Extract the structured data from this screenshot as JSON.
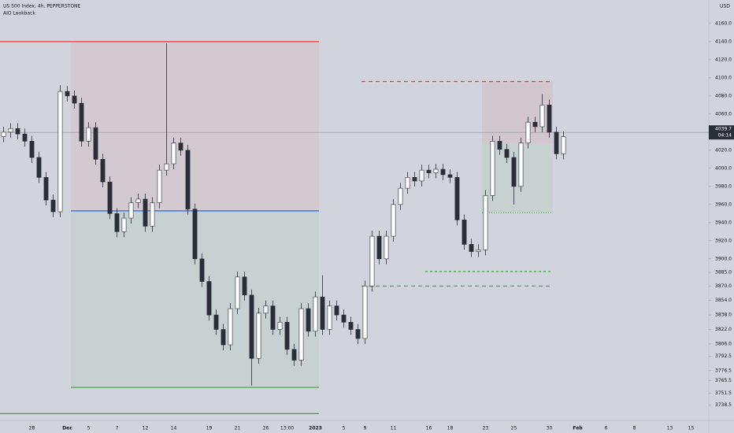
{
  "chart_data": {
    "type": "candlestick",
    "title": "US 500 Index, 4h, PEPPERSTONE",
    "indicator": "AIO Lookback",
    "currency": "USD",
    "categories": [
      null,
      null,
      null,
      null,
      "28",
      null,
      null,
      null,
      null,
      "Dec",
      null,
      null,
      "5",
      null,
      null,
      null,
      "7",
      null,
      null,
      null,
      "12",
      null,
      null,
      null,
      "14",
      null,
      null,
      null,
      null,
      "19",
      null,
      null,
      null,
      "21",
      null,
      null,
      null,
      "26",
      null,
      null,
      "13:00",
      null,
      null,
      null,
      "2023",
      null,
      null,
      null,
      "5",
      null,
      null,
      "9",
      null,
      null,
      null,
      "11",
      null,
      null,
      null,
      null,
      "16",
      null,
      null,
      "18",
      null,
      null,
      null,
      null,
      "23",
      null,
      null,
      null,
      "25",
      null,
      null,
      null,
      null,
      "30",
      null,
      null,
      null,
      "Feb",
      null,
      null,
      null,
      "6",
      null,
      null,
      null,
      "8",
      null,
      null,
      null,
      null,
      "13",
      null,
      null,
      "15",
      null,
      null
    ],
    "open": [
      4035,
      4040,
      4044,
      4038,
      4030,
      4012,
      3990,
      3965,
      3952,
      4085,
      4080,
      4072,
      4030,
      4045,
      4010,
      3985,
      3950,
      3930,
      3945,
      3962,
      3966,
      3936,
      3962,
      3998,
      4005,
      4028,
      4020,
      3955,
      3900,
      3875,
      3838,
      3822,
      3805,
      3845,
      3880,
      3860,
      3790,
      3840,
      3848,
      3822,
      3830,
      3800,
      3788,
      3845,
      3820,
      3858,
      3822,
      3848,
      3838,
      3830,
      3822,
      3812,
      3870,
      3925,
      3900,
      3925,
      3960,
      3978,
      3990,
      3986,
      3998,
      3995,
      3999,
      3993,
      3990,
      3943,
      3916,
      3908,
      3910,
      3970,
      4030,
      4021,
      4012,
      3980,
      4028,
      4051,
      4046,
      4070,
      4040,
      4016,
      null,
      null,
      null,
      null,
      null,
      null,
      null,
      null,
      null,
      null,
      null,
      null,
      null,
      null,
      null,
      null,
      null,
      null,
      null,
      null
    ],
    "high": [
      4046,
      4050,
      4050,
      4044,
      4036,
      4018,
      3996,
      3971,
      4092,
      4091,
      4086,
      4078,
      4051,
      4051,
      4016,
      3991,
      3956,
      3951,
      3968,
      3972,
      3972,
      3968,
      4004,
      4138,
      4034,
      4034,
      4026,
      3961,
      3906,
      3881,
      3844,
      3828,
      3851,
      3886,
      3886,
      3866,
      3846,
      3854,
      3854,
      3836,
      3836,
      3806,
      3851,
      3851,
      3864,
      3882,
      3854,
      3854,
      3844,
      3836,
      3828,
      3876,
      3931,
      3931,
      3931,
      3966,
      3984,
      3996,
      3996,
      4004,
      4004,
      4005,
      4005,
      3999,
      3996,
      3949,
      3922,
      3916,
      3976,
      4036,
      4036,
      4027,
      4018,
      4034,
      4057,
      4057,
      4082,
      4076,
      4046,
      4041,
      null,
      null,
      null,
      null,
      null,
      null,
      null,
      null,
      null,
      null,
      null,
      null,
      null,
      null,
      null,
      null,
      null,
      null,
      null,
      null
    ],
    "low": [
      4029,
      4034,
      4032,
      4024,
      4006,
      3984,
      3959,
      3946,
      3946,
      4074,
      4066,
      4024,
      4024,
      4004,
      3979,
      3944,
      3924,
      3924,
      3939,
      3956,
      3930,
      3930,
      3956,
      3992,
      3999,
      4014,
      3949,
      3894,
      3869,
      3832,
      3816,
      3799,
      3799,
      3839,
      3854,
      3760,
      3784,
      3834,
      3816,
      3816,
      3794,
      3782,
      3782,
      3814,
      3814,
      3816,
      3816,
      3832,
      3824,
      3816,
      3806,
      3806,
      3864,
      3894,
      3894,
      3919,
      3954,
      3972,
      3980,
      3980,
      3989,
      3989,
      3987,
      3984,
      3937,
      3910,
      3902,
      3902,
      3904,
      3964,
      4015,
      4006,
      3960,
      3974,
      4022,
      4040,
      4040,
      4034,
      4010,
      4010,
      null,
      null,
      null,
      null,
      null,
      null,
      null,
      null,
      null,
      null,
      null,
      null,
      null,
      null,
      null,
      null,
      null,
      null,
      null,
      null
    ],
    "close": [
      4040,
      4044,
      4038,
      4030,
      4012,
      3990,
      3965,
      3952,
      4085,
      4080,
      4072,
      4030,
      4045,
      4010,
      3985,
      3950,
      3930,
      3945,
      3962,
      3966,
      3936,
      3962,
      3998,
      4005,
      4028,
      4020,
      3955,
      3900,
      3875,
      3838,
      3822,
      3805,
      3845,
      3880,
      3860,
      3790,
      3840,
      3848,
      3822,
      3830,
      3800,
      3788,
      3845,
      3820,
      3858,
      3822,
      3848,
      3838,
      3830,
      3822,
      3812,
      3870,
      3925,
      3900,
      3925,
      3960,
      3978,
      3990,
      3986,
      3998,
      3995,
      3999,
      3993,
      3990,
      3943,
      3916,
      3908,
      3910,
      3970,
      4030,
      4021,
      4012,
      3980,
      4028,
      4051,
      4046,
      4070,
      4040,
      4016,
      4035,
      null,
      null,
      null,
      null,
      null,
      null,
      null,
      null,
      null,
      null,
      null,
      null,
      null,
      null,
      null,
      null,
      null,
      null,
      null,
      null
    ],
    "up_color": "#ffffff",
    "down_color": "#2a2e39",
    "ylim": [
      3725,
      4186
    ],
    "yticks": [
      {
        "value": 4160,
        "label": "4160.0"
      },
      {
        "value": 4140,
        "label": "4140.0"
      },
      {
        "value": 4120,
        "label": "4120.0"
      },
      {
        "value": 4100,
        "label": "4100.0"
      },
      {
        "value": 4080,
        "label": "4080.0"
      },
      {
        "value": 4060,
        "label": "4060.0"
      },
      {
        "value": 4020,
        "label": "4020.0"
      },
      {
        "value": 4000,
        "label": "4000.0"
      },
      {
        "value": 3980,
        "label": "3980.0"
      },
      {
        "value": 3960,
        "label": "3960.0"
      },
      {
        "value": 3940,
        "label": "3940.0"
      },
      {
        "value": 3920,
        "label": "3920.0"
      },
      {
        "value": 3900,
        "label": "3900.0"
      },
      {
        "value": 3885,
        "label": "3885.0"
      },
      {
        "value": 3870,
        "label": "3870.0"
      },
      {
        "value": 3854,
        "label": "3854.0"
      },
      {
        "value": 3838,
        "label": "3838.0"
      },
      {
        "value": 3822,
        "label": "3822.0"
      },
      {
        "value": 3806,
        "label": "3806.0"
      },
      {
        "value": 3792.5,
        "label": "3792.5"
      },
      {
        "value": 3776.5,
        "label": "3776.5"
      },
      {
        "value": 3765.5,
        "label": "3765.5"
      },
      {
        "value": 3751.5,
        "label": "3751.5"
      },
      {
        "value": 3738.5,
        "label": "3738.5"
      }
    ],
    "grid": false,
    "last_price": 4039.7,
    "countdown": "04:14",
    "zones": [
      {
        "lo": 3953,
        "hi": 4140,
        "from": 10,
        "to": 44,
        "color": "rgba(242,54,69,0.07)"
      },
      {
        "lo": 3758,
        "hi": 3953,
        "from": 10,
        "to": 44,
        "color": "rgba(76,175,80,0.07)"
      },
      {
        "lo": 4027,
        "hi": 4096,
        "from": 68,
        "to": 77,
        "color": "rgba(242,54,69,0.08)"
      },
      {
        "lo": 3951,
        "hi": 4027,
        "from": 68,
        "to": 77,
        "color": "rgba(76,175,80,0.08)"
      }
    ],
    "levels": [
      {
        "value": 4140,
        "from": 0,
        "to": 44,
        "color": "#f23645",
        "dash": "none"
      },
      {
        "value": 3953,
        "from": 10,
        "to": 44,
        "color": "#2962ff",
        "dash": "none"
      },
      {
        "value": 3758,
        "from": 10,
        "to": 44,
        "color": "#43a047",
        "dash": "none"
      },
      {
        "value": 3729,
        "from": 0,
        "to": 44,
        "color": "#43a047",
        "dash": "none"
      },
      {
        "value": 4096,
        "from": 51,
        "to": 77,
        "color": "#f23645",
        "dash": "5 4"
      },
      {
        "value": 3886,
        "from": 60,
        "to": 77,
        "color": "#43a047",
        "dash": "3 3"
      },
      {
        "value": 3870,
        "from": 51,
        "to": 77,
        "color": "#43a047",
        "dash": "5 4"
      },
      {
        "value": 3951,
        "from": 68,
        "to": 77,
        "color": "#43a047",
        "dash": "1 2"
      }
    ]
  }
}
